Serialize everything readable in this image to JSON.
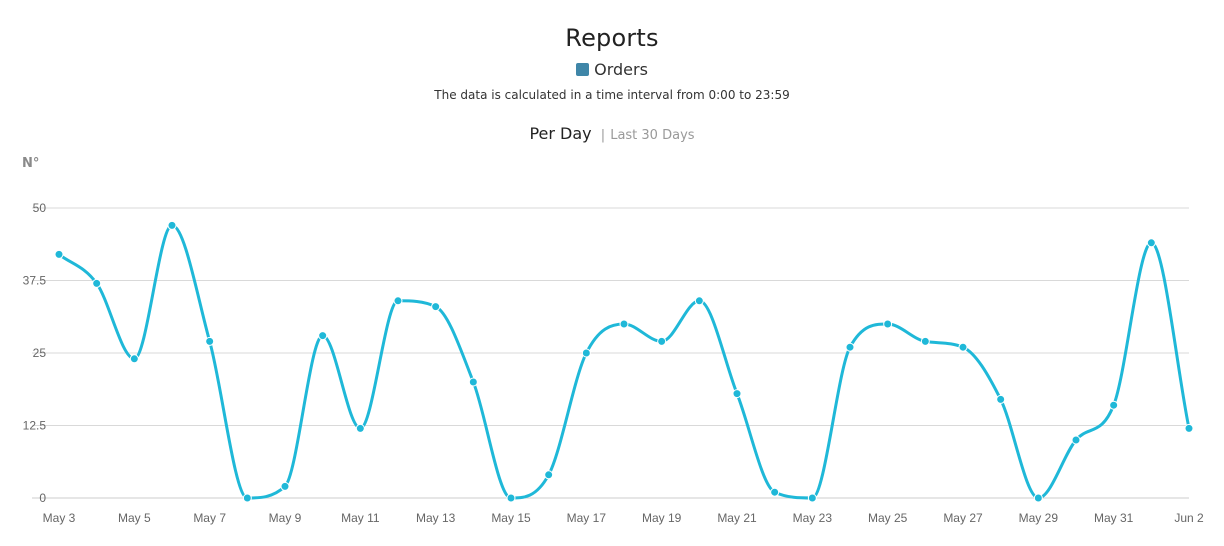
{
  "header": {
    "title": "Reports",
    "subtitle": "The data is calculated in a time interval from 0:00 to 23:59",
    "period_main": "Per Day",
    "period_separator": "|",
    "period_range": "Last 30 Days"
  },
  "legend": {
    "label": "Orders",
    "swatch_color": "#3f86a8"
  },
  "colors": {
    "line": "#1fb8d8",
    "grid": "#d9d9d9",
    "axis": "#cccccc"
  },
  "chart_data": {
    "type": "line",
    "ylabel": "N°",
    "ylim": [
      0,
      50
    ],
    "yticks": [
      0,
      12.5,
      25,
      37.5,
      50
    ],
    "yticklabels": [
      "0",
      "12.5",
      "25",
      "37.5",
      "50"
    ],
    "grid": true,
    "legend_position": "top-center",
    "xticklabels": [
      "May 3",
      "May 5",
      "May 7",
      "May 9",
      "May 11",
      "May 13",
      "May 15",
      "May 17",
      "May 19",
      "May 21",
      "May 23",
      "May 25",
      "May 27",
      "May 29",
      "May 31",
      "Jun 2"
    ],
    "x": [
      "May 3",
      "May 4",
      "May 5",
      "May 6",
      "May 7",
      "May 8",
      "May 9",
      "May 10",
      "May 11",
      "May 12",
      "May 13",
      "May 14",
      "May 15",
      "May 16",
      "May 17",
      "May 18",
      "May 19",
      "May 20",
      "May 21",
      "May 22",
      "May 23",
      "May 24",
      "May 25",
      "May 26",
      "May 27",
      "May 28",
      "May 29",
      "May 30",
      "May 31",
      "Jun 1",
      "Jun 2"
    ],
    "series": [
      {
        "name": "Orders",
        "values": [
          42,
          37,
          24,
          47,
          27,
          0,
          2,
          28,
          12,
          34,
          33,
          20,
          0,
          4,
          25,
          30,
          27,
          34,
          18,
          1,
          0,
          26,
          30,
          27,
          26,
          17,
          0,
          10,
          16,
          44,
          12
        ]
      }
    ]
  }
}
